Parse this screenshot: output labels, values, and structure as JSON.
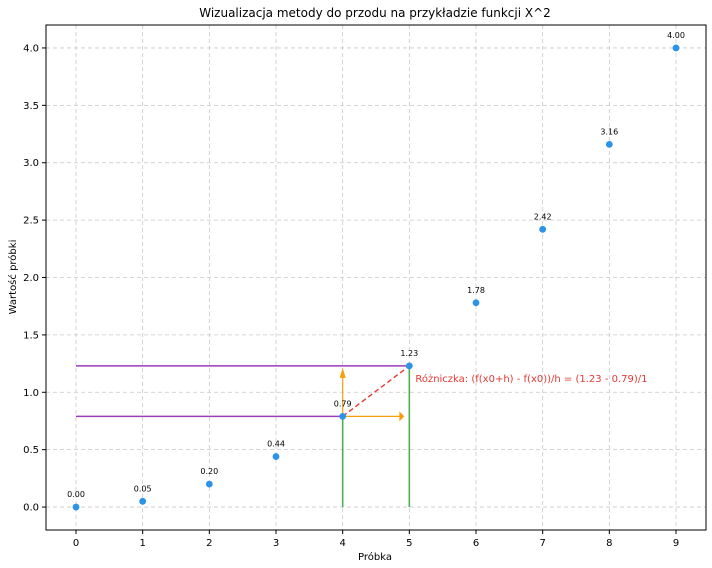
{
  "chart_data": {
    "type": "scatter",
    "title": "Wizualizacja metody do przodu na przykładzie funkcji X^2",
    "xlabel": "Próbka",
    "ylabel": "Wartość próbki",
    "xlim": [
      -0.45,
      9.45
    ],
    "ylim": [
      -0.2,
      4.2
    ],
    "xticks": [
      0,
      1,
      2,
      3,
      4,
      5,
      6,
      7,
      8,
      9
    ],
    "yticks": [
      0.0,
      0.5,
      1.0,
      1.5,
      2.0,
      2.5,
      3.0,
      3.5,
      4.0
    ],
    "grid": true,
    "x": [
      0,
      1,
      2,
      3,
      4,
      5,
      6,
      7,
      8,
      9
    ],
    "y": [
      0.0,
      0.05,
      0.2,
      0.44,
      0.79,
      1.23,
      1.78,
      2.42,
      3.16,
      4.0
    ],
    "value_labels": [
      "0.00",
      "0.05",
      "0.20",
      "0.44",
      "0.79",
      "1.23",
      "1.78",
      "2.42",
      "3.16",
      "4.00"
    ],
    "point_color": "#2b94e8",
    "annotations": {
      "x0": 4,
      "x1": 5,
      "y0": 0.79,
      "y1": 1.23,
      "horizontal_line_color": "#9b3cb8",
      "vertical_line_color": "#4caf50",
      "arrow_color": "#f5a00a",
      "secant_color": "#e53935",
      "difference_text": "Różniczka: (f(x0+h) - f(x0))/h = (1.23 - 0.79)/1",
      "text_color": "#e53935"
    }
  }
}
